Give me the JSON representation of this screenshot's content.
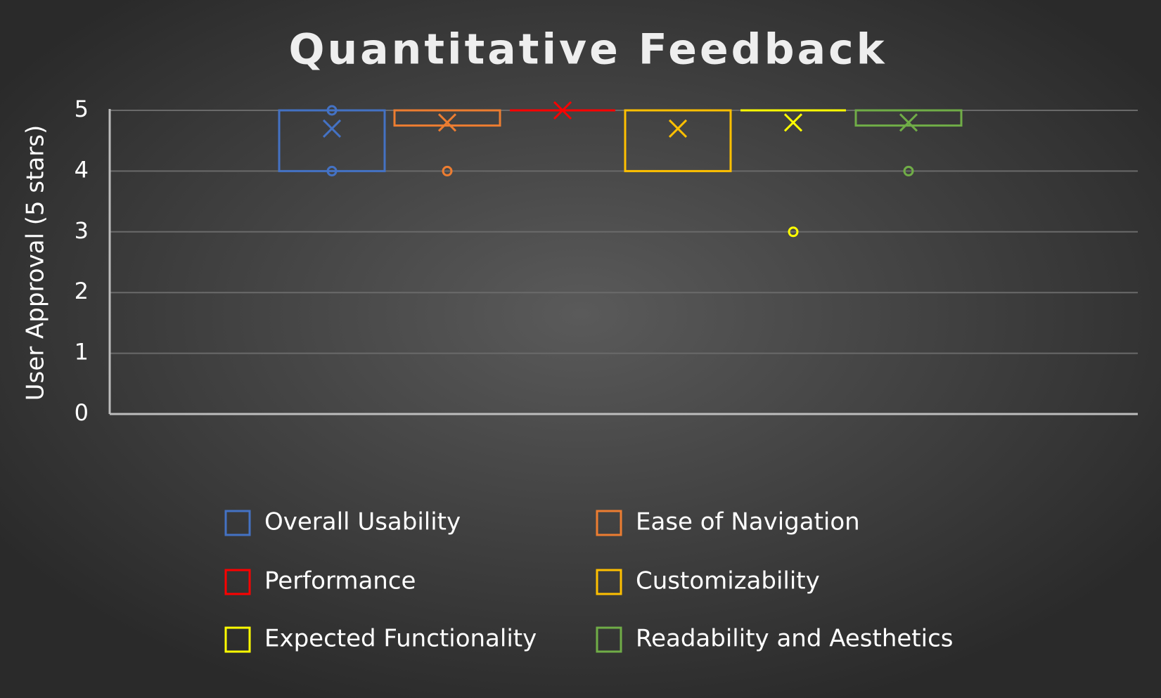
{
  "chart_data": {
    "type": "box",
    "title": "Quantitative Feedback",
    "y_label": "User Approval (5 stars)",
    "ylim": [
      0,
      5
    ],
    "yticks": [
      0,
      1,
      2,
      3,
      4,
      5
    ],
    "grid": true,
    "legend": "bottom",
    "series": [
      {
        "name": "Overall Usability",
        "color": "#4472c4",
        "min": 4,
        "q1": 4,
        "median": 5,
        "q3": 5,
        "max": 5,
        "mean": 4.7,
        "points": [
          5,
          4
        ]
      },
      {
        "name": "Ease of Navigation",
        "color": "#ed7d31",
        "min": 4.75,
        "q1": 4.75,
        "median": 5,
        "q3": 5,
        "max": 5,
        "mean": 4.8,
        "points": [
          4
        ]
      },
      {
        "name": "Performance",
        "color": "#ff0000",
        "min": 5,
        "q1": 5,
        "median": 5,
        "q3": 5,
        "max": 5,
        "mean": 5,
        "points": []
      },
      {
        "name": "Customizability",
        "color": "#ffc000",
        "min": 4,
        "q1": 4,
        "median": 5,
        "q3": 5,
        "max": 5,
        "mean": 4.7,
        "points": []
      },
      {
        "name": "Expected Functionality",
        "color": "#ffff00",
        "min": 5,
        "q1": 5,
        "median": 5,
        "q3": 5,
        "max": 5,
        "mean": 4.8,
        "points": [
          3
        ]
      },
      {
        "name": "Readability and Aesthetics",
        "color": "#70ad47",
        "min": 4.75,
        "q1": 4.75,
        "median": 5,
        "q3": 5,
        "max": 5,
        "mean": 4.8,
        "points": [
          4
        ]
      }
    ]
  }
}
